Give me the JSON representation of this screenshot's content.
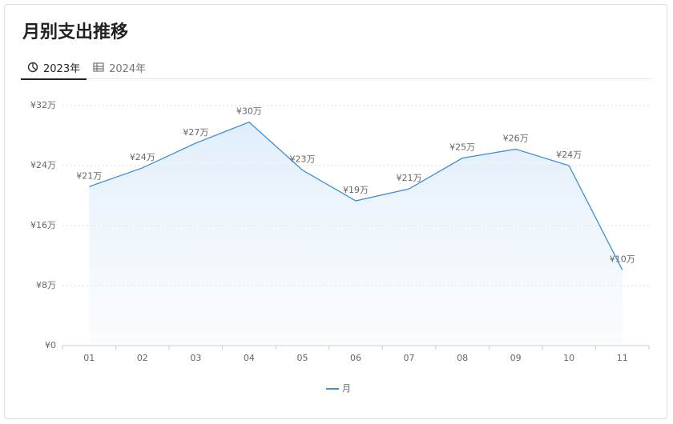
{
  "header": {
    "title": "月别支出推移"
  },
  "tabs": [
    {
      "label": "2023年",
      "active": true
    },
    {
      "label": "2024年",
      "active": false
    }
  ],
  "chart_data": {
    "type": "line",
    "categories": [
      "01",
      "02",
      "03",
      "04",
      "05",
      "06",
      "07",
      "08",
      "09",
      "10",
      "11"
    ],
    "series": [
      {
        "name": "月",
        "color": "#3d8fd9",
        "values": [
          21.2,
          23.7,
          27.0,
          29.8,
          23.4,
          19.3,
          20.9,
          25.0,
          26.2,
          24.0,
          10.1
        ],
        "value_labels": [
          "¥21万",
          "¥24万",
          "¥27万",
          "¥30万",
          "¥23万",
          "¥19万",
          "¥21万",
          "¥25万",
          "¥26万",
          "¥24万",
          "¥10万"
        ]
      }
    ],
    "ylim": [
      0,
      32
    ],
    "yticks": [
      {
        "value": 0,
        "label": "¥0"
      },
      {
        "value": 8,
        "label": "¥8万"
      },
      {
        "value": 16,
        "label": "¥16万"
      },
      {
        "value": 24,
        "label": "¥24万"
      },
      {
        "value": 32,
        "label": "¥32万"
      }
    ],
    "grid": true,
    "legend": "bottom",
    "area": true
  }
}
